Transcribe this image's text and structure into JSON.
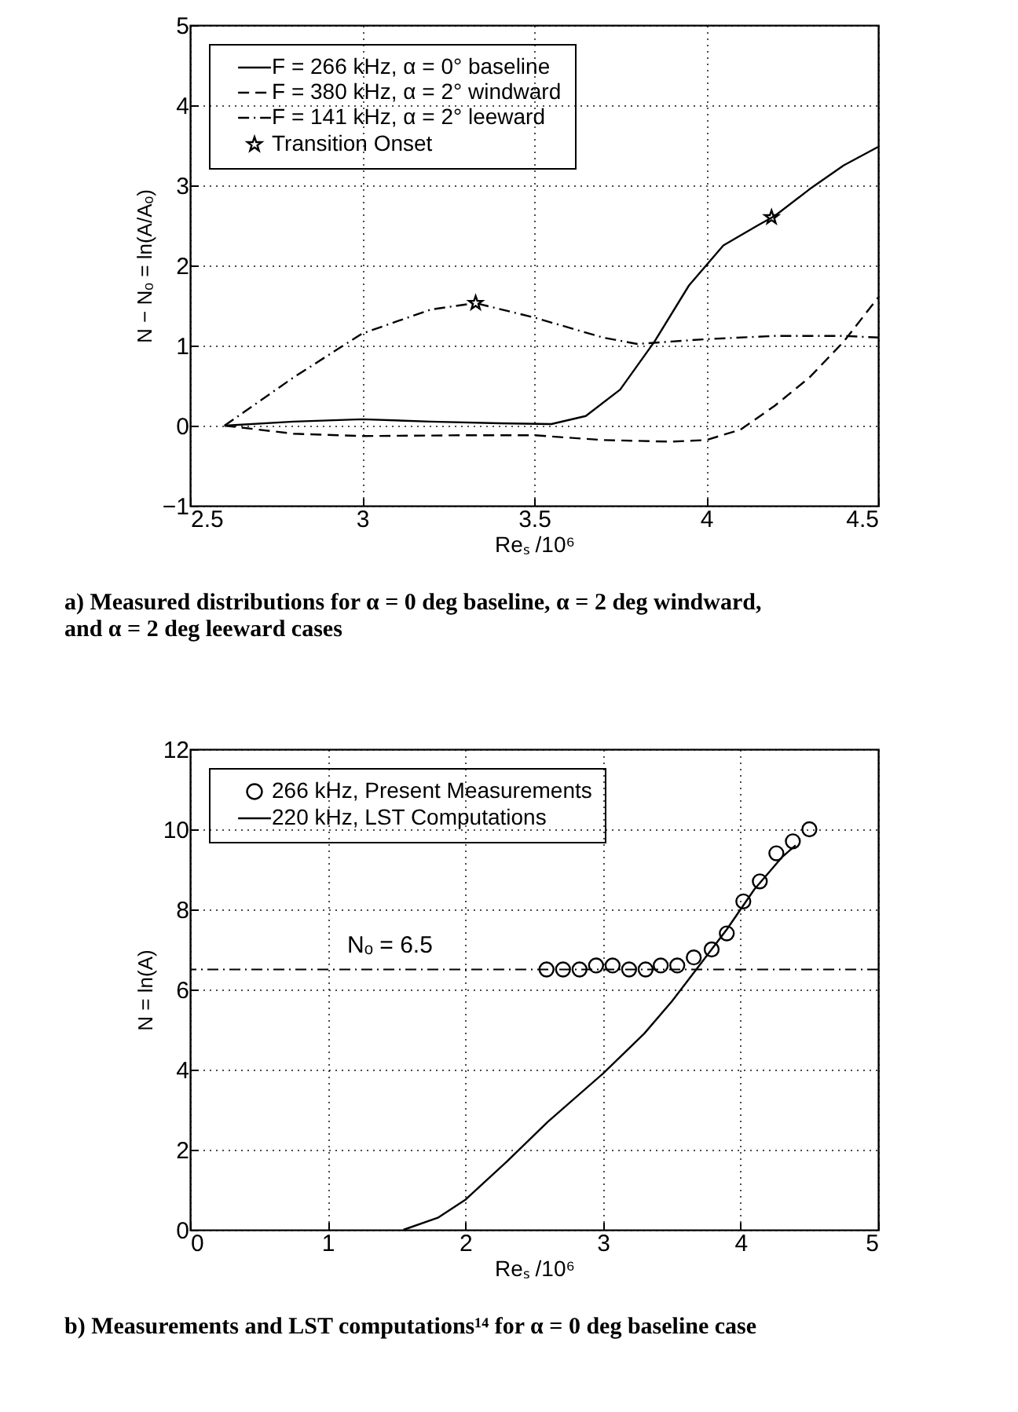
{
  "chart_data": [
    {
      "type": "line",
      "title": "a) Measured distributions for α = 0 deg baseline, α = 2 deg windward, and α = 2 deg leeward cases",
      "xlabel": "Reₛ /10⁶",
      "ylabel": "N − Nₒ = ln(A/Aₒ)",
      "xlim": [
        2.5,
        4.5
      ],
      "xticks": [
        2.5,
        3,
        3.5,
        4,
        4.5
      ],
      "ylim": [
        -1,
        5
      ],
      "yticks": [
        {
          "value": -1,
          "label": "−1"
        },
        0,
        1,
        2,
        3,
        4,
        5
      ],
      "grid": true,
      "legend": "top left",
      "series": [
        {
          "name": "F = 266 kHz, α = 0° baseline",
          "color": "#000000",
          "type": "line",
          "line_style": "solid",
          "x": [
            2.6,
            2.8,
            3.0,
            3.2,
            3.4,
            3.55,
            3.65,
            3.75,
            3.85,
            3.95,
            4.05,
            4.15,
            4.2,
            4.3,
            4.4,
            4.5
          ],
          "values": [
            0,
            0.05,
            0.08,
            0.05,
            0.03,
            0.02,
            0.12,
            0.45,
            1.05,
            1.75,
            2.25,
            2.5,
            2.62,
            2.95,
            3.25,
            3.48
          ]
        },
        {
          "name": "F = 380 kHz, α = 2° windward",
          "color": "#000000",
          "type": "line",
          "line_style": "dashed",
          "x": [
            2.6,
            2.8,
            3.0,
            3.3,
            3.5,
            3.7,
            3.9,
            4.0,
            4.1,
            4.2,
            4.3,
            4.4,
            4.5
          ],
          "values": [
            0,
            -0.1,
            -0.13,
            -0.12,
            -0.12,
            -0.18,
            -0.2,
            -0.18,
            -0.05,
            0.25,
            0.6,
            1.05,
            1.6
          ]
        },
        {
          "name": "F = 141 kHz, α = 2° leeward",
          "color": "#000000",
          "type": "line",
          "line_style": "dashdot",
          "x": [
            2.6,
            2.8,
            3.0,
            3.2,
            3.33,
            3.5,
            3.7,
            3.8,
            3.9,
            4.0,
            4.2,
            4.4,
            4.5
          ],
          "values": [
            0,
            0.6,
            1.15,
            1.45,
            1.53,
            1.35,
            1.1,
            1.02,
            1.05,
            1.08,
            1.12,
            1.12,
            1.1
          ]
        },
        {
          "name": "Transition Onset",
          "color": "#000000",
          "type": "scatter",
          "marker": "star",
          "x": [
            3.33,
            4.19
          ],
          "values": [
            1.53,
            2.6
          ]
        }
      ]
    },
    {
      "type": "line",
      "title": "b) Measurements and LST computations¹⁴ for α = 0 deg baseline case",
      "xlabel": "Reₛ /10⁶",
      "ylabel": "N = ln(A)",
      "xlim": [
        0,
        5
      ],
      "xticks": [
        0,
        1,
        2,
        3,
        4,
        5
      ],
      "ylim": [
        0,
        12
      ],
      "yticks": [
        0,
        2,
        4,
        6,
        8,
        10,
        12
      ],
      "grid": true,
      "legend": "top left",
      "ref_lines": [
        {
          "axis": "y",
          "value": 6.5,
          "label": "Nₒ = 6.5",
          "color": "#000000",
          "line_style": "dashdot"
        }
      ],
      "series": [
        {
          "name": "266 kHz, Present Measurements",
          "color": "#000000",
          "type": "scatter",
          "marker": "circle",
          "x": [
            2.59,
            2.71,
            2.83,
            2.95,
            3.07,
            3.19,
            3.31,
            3.42,
            3.54,
            3.66,
            3.79,
            3.9,
            4.02,
            4.14,
            4.26,
            4.38,
            4.5
          ],
          "values": [
            6.5,
            6.5,
            6.5,
            6.6,
            6.6,
            6.5,
            6.5,
            6.6,
            6.6,
            6.8,
            7.0,
            7.4,
            8.2,
            8.7,
            9.4,
            9.7,
            10.0
          ]
        },
        {
          "name": "220 kHz, LST Computations",
          "color": "#000000",
          "type": "line",
          "line_style": "solid",
          "x": [
            1.55,
            1.8,
            2.0,
            2.3,
            2.6,
            3.0,
            3.3,
            3.5,
            3.7,
            3.9,
            4.1,
            4.3,
            4.4
          ],
          "values": [
            0,
            0.3,
            0.75,
            1.7,
            2.7,
            3.9,
            4.9,
            5.7,
            6.6,
            7.5,
            8.5,
            9.3,
            9.6
          ]
        }
      ]
    }
  ]
}
